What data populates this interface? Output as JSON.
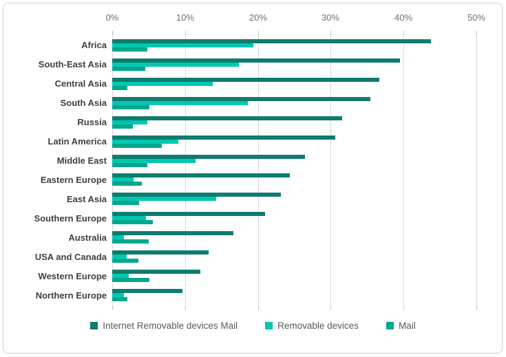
{
  "chart_data": {
    "type": "bar",
    "orientation": "horizontal",
    "title": "",
    "categories": [
      "Africa",
      "South-East Asia",
      "Central Asia",
      "South Asia",
      "Russia",
      "Latin America",
      "Middle East",
      "Eastern Europe",
      "East Asia",
      "Southern Europe",
      "Australia",
      "USA and Canada",
      "Western Europe",
      "Northern Europe"
    ],
    "series": [
      {
        "name": "Internet Removable devices Mail",
        "color": "#0e7c6e",
        "values": [
          43.8,
          39.5,
          36.7,
          35.4,
          31.6,
          30.6,
          26.5,
          24.4,
          23.2,
          21.0,
          16.6,
          13.2,
          12.1,
          9.6
        ]
      },
      {
        "name": "Removable devices",
        "color": "#00c7b2",
        "values": [
          19.4,
          17.4,
          13.8,
          18.6,
          4.8,
          9.1,
          11.4,
          2.9,
          14.3,
          4.6,
          1.6,
          2.0,
          2.3,
          1.6
        ]
      },
      {
        "name": "Mail",
        "color": "#00a88c",
        "values": [
          4.8,
          4.5,
          2.1,
          5.1,
          2.8,
          6.8,
          4.8,
          4.1,
          3.7,
          5.6,
          5.0,
          3.6,
          5.1,
          2.1
        ]
      }
    ],
    "x_axis": {
      "position": "top",
      "min": 0,
      "max": 50,
      "tick_step": 10,
      "tick_labels": [
        "0%",
        "10%",
        "20%",
        "30%",
        "40%",
        "50%"
      ]
    },
    "grid": true,
    "legend": {
      "position": "bottom",
      "items": [
        "Internet Removable devices Mail",
        "Removable devices",
        "Mail"
      ]
    }
  },
  "style_colors": {
    "gridline": "#d9d9d9",
    "tick": "#bfbfbf",
    "axis_text": "#6e6e6e",
    "category_text": "#3f3f3f",
    "legend_text": "#595959",
    "frame_border": "#d2d2d2",
    "background": "#ffffff"
  }
}
